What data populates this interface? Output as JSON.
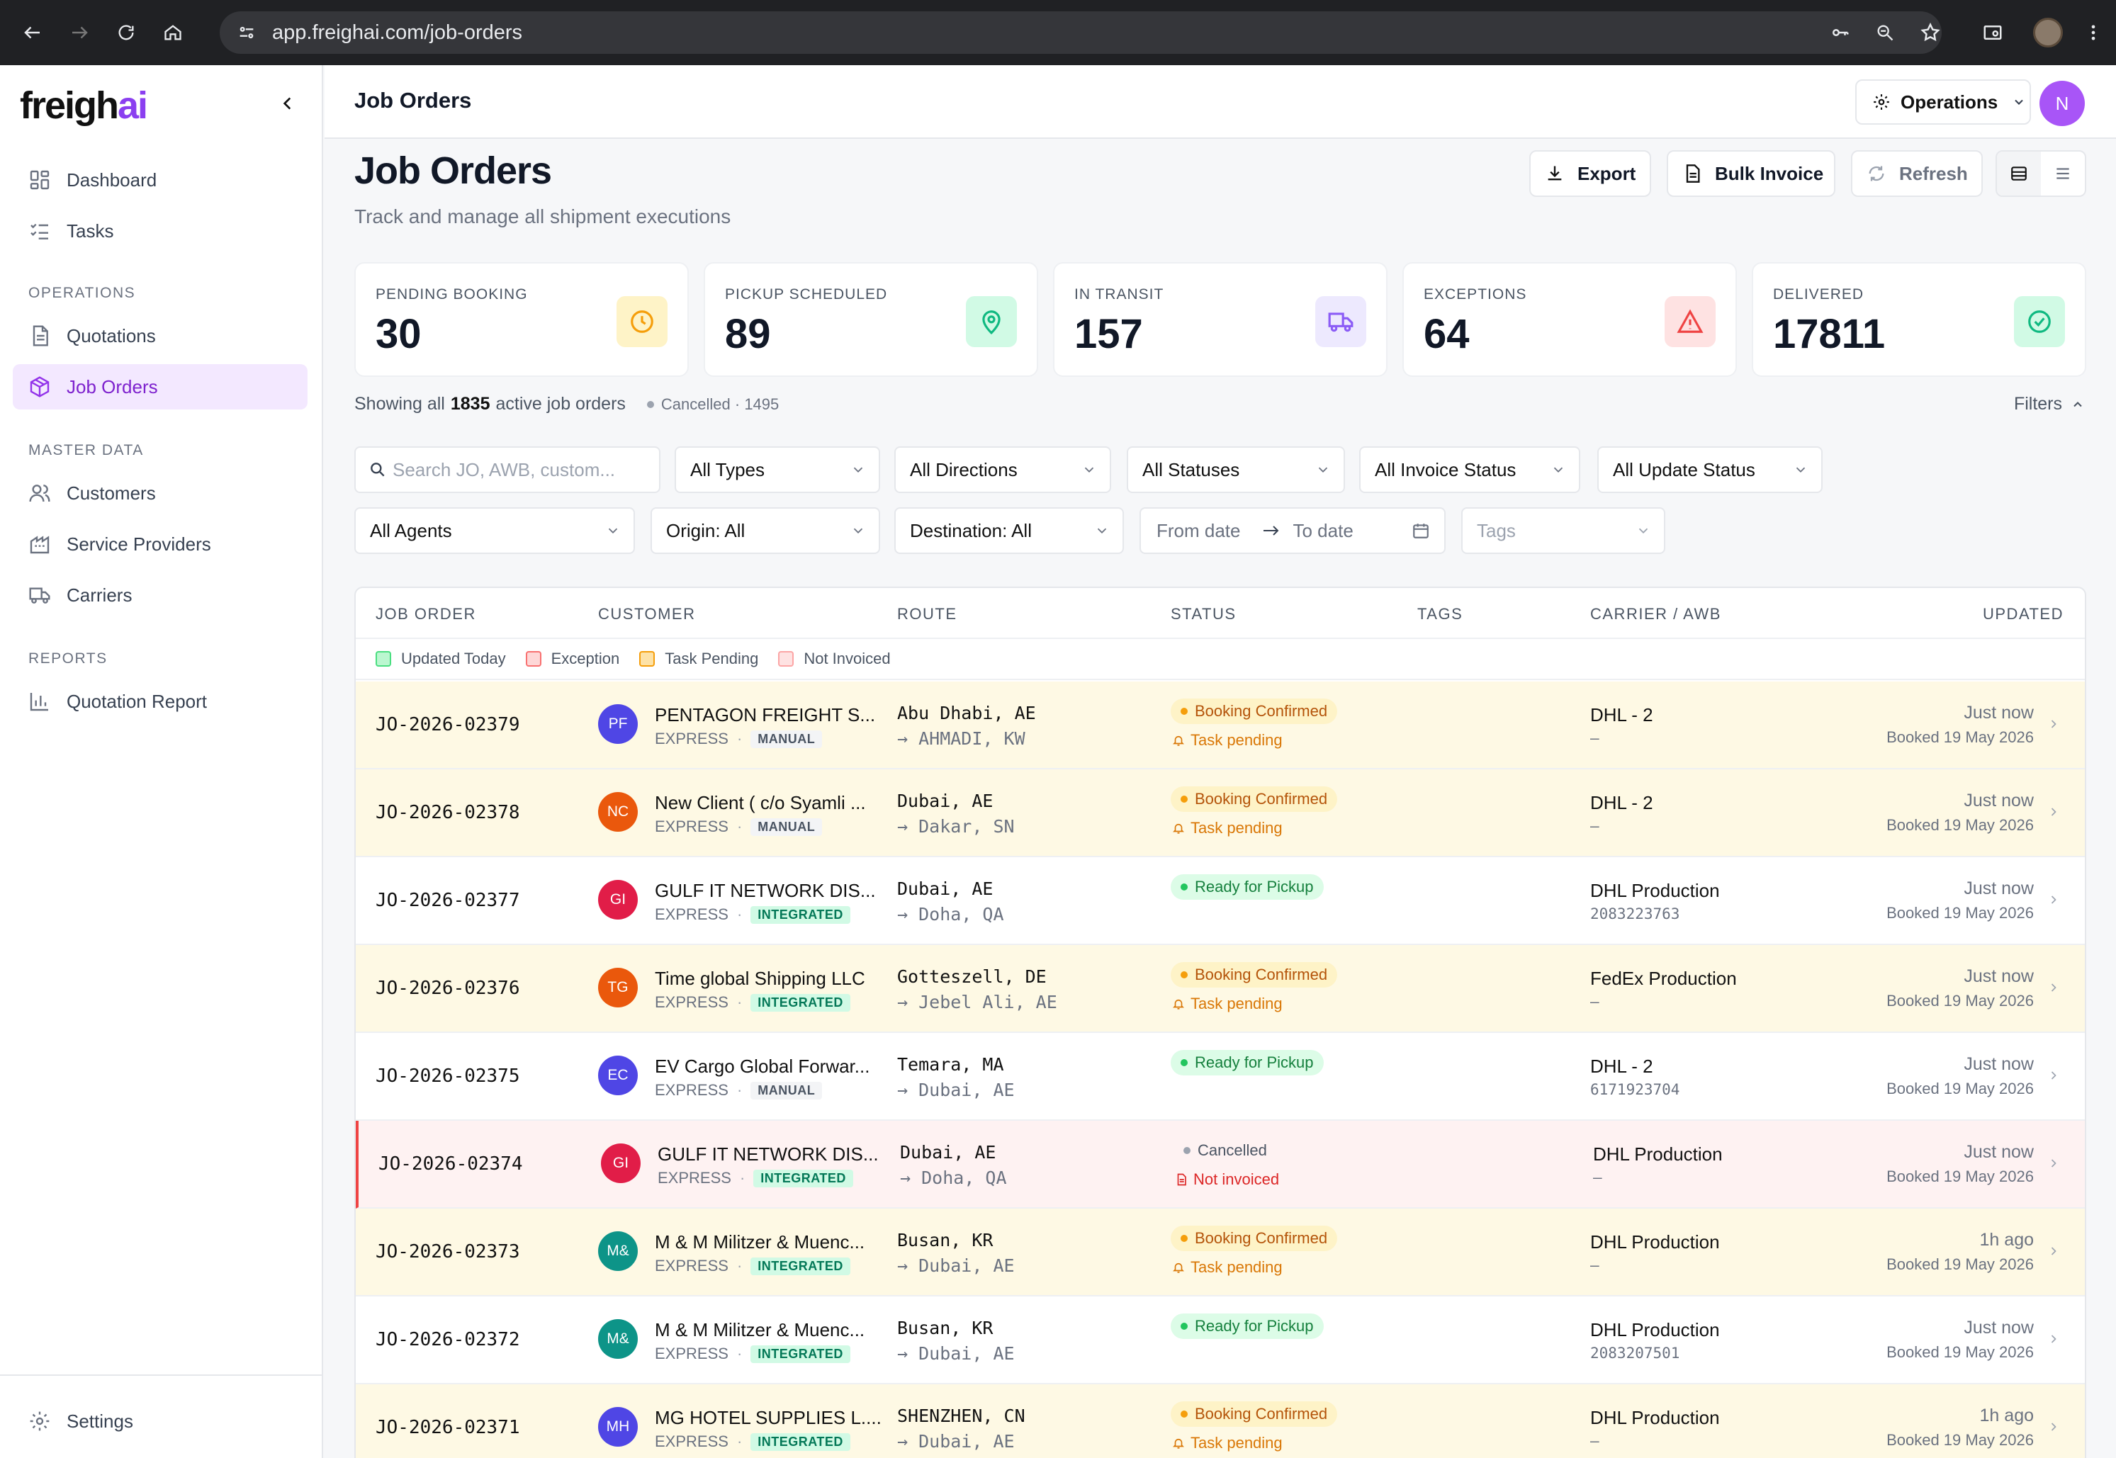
{
  "browser": {
    "url": "app.freighai.com/job-orders"
  },
  "brand": {
    "part1": "freigh",
    "part2": "ai"
  },
  "sidebar": {
    "items": [
      {
        "label": "Dashboard",
        "icon": "dashboard-icon"
      },
      {
        "label": "Tasks",
        "icon": "tasks-icon"
      }
    ],
    "section_operations": "OPERATIONS",
    "operations": [
      {
        "label": "Quotations",
        "icon": "document-icon"
      },
      {
        "label": "Job Orders",
        "icon": "package-icon",
        "active": true
      }
    ],
    "section_master": "MASTER DATA",
    "master": [
      {
        "label": "Customers",
        "icon": "users-icon"
      },
      {
        "label": "Service Providers",
        "icon": "building-icon"
      },
      {
        "label": "Carriers",
        "icon": "truck-icon"
      }
    ],
    "section_reports": "REPORTS",
    "reports": [
      {
        "label": "Quotation Report",
        "icon": "bar-chart-icon"
      }
    ],
    "settings": "Settings"
  },
  "header": {
    "title": "Job Orders",
    "workspace": "Operations",
    "avatar": "N"
  },
  "page": {
    "title": "Job Orders",
    "subtitle": "Track and manage all shipment executions",
    "export": "Export",
    "bulk_invoice": "Bulk Invoice",
    "refresh": "Refresh"
  },
  "stats": [
    {
      "label": "PENDING BOOKING",
      "value": "30",
      "color": "#f59e0b",
      "bg": "#fef3c7"
    },
    {
      "label": "PICKUP SCHEDULED",
      "value": "89",
      "color": "#10b981",
      "bg": "#d1fae5"
    },
    {
      "label": "IN TRANSIT",
      "value": "157",
      "color": "#8b5cf6",
      "bg": "#ede9fe"
    },
    {
      "label": "EXCEPTIONS",
      "value": "64",
      "color": "#ef4444",
      "bg": "#fee2e2"
    },
    {
      "label": "DELIVERED",
      "value": "17811",
      "color": "#10b981",
      "bg": "#d1fae5"
    }
  ],
  "summary": {
    "prefix": "Showing all",
    "count": "1835",
    "suffix": "active job orders",
    "cancelled": "Cancelled · 1495",
    "filters": "Filters"
  },
  "filters": {
    "search_placeholder": "Search JO, AWB, custom...",
    "types": "All Types",
    "directions": "All Directions",
    "statuses": "All Statuses",
    "invoice": "All Invoice Status",
    "update": "All Update Status",
    "agents": "All Agents",
    "origin": "Origin: All",
    "destination": "Destination: All",
    "from_date": "From date",
    "to_date": "To date",
    "tags": "Tags"
  },
  "table": {
    "headers": {
      "job": "JOB ORDER",
      "customer": "CUSTOMER",
      "route": "ROUTE",
      "status": "STATUS",
      "tags": "TAGS",
      "carrier": "CARRIER / AWB",
      "updated": "UPDATED"
    },
    "legend": [
      {
        "label": "Updated Today",
        "color": "#bbf7d0",
        "border": "#4ade80"
      },
      {
        "label": "Exception",
        "color": "#fed7d7",
        "border": "#f87171"
      },
      {
        "label": "Task Pending",
        "color": "#fde2a7",
        "border": "#f59e0b"
      },
      {
        "label": "Not Invoiced",
        "color": "#fee2e2",
        "border": "#fca5a5"
      }
    ],
    "rows": [
      {
        "jo": "JO-2026-02379",
        "initials": "PF",
        "avatar_color": "#4f46e5",
        "customer": "PENTAGON FREIGHT S...",
        "mode": "EXPRESS",
        "tag": "MANUAL",
        "from": "Abu Dhabi, AE",
        "to": "→ AHMADI, KW",
        "status": "Booking Confirmed",
        "status_kind": "bc",
        "sub": "Task pending",
        "sub_kind": "tp",
        "carrier": "DHL - 2",
        "awb": "—",
        "updated": "Just now",
        "booked": "Booked 19 May 2026",
        "tone": "yel"
      },
      {
        "jo": "JO-2026-02378",
        "initials": "NC",
        "avatar_color": "#ea580c",
        "customer": "New Client ( c/o Syamli ...",
        "mode": "EXPRESS",
        "tag": "MANUAL",
        "from": "Dubai, AE",
        "to": "→ Dakar, SN",
        "status": "Booking Confirmed",
        "status_kind": "bc",
        "sub": "Task pending",
        "sub_kind": "tp",
        "carrier": "DHL - 2",
        "awb": "—",
        "updated": "Just now",
        "booked": "Booked 19 May 2026",
        "tone": "yel"
      },
      {
        "jo": "JO-2026-02377",
        "initials": "GI",
        "avatar_color": "#e11d48",
        "customer": "GULF IT NETWORK DIS...",
        "mode": "EXPRESS",
        "tag": "INTEGRATED",
        "from": "Dubai, AE",
        "to": "→ Doha, QA",
        "status": "Ready for Pickup",
        "status_kind": "rp",
        "sub": "",
        "sub_kind": "",
        "carrier": "DHL Production",
        "awb": "2083223763",
        "updated": "Just now",
        "booked": "Booked 19 May 2026",
        "tone": ""
      },
      {
        "jo": "JO-2026-02376",
        "initials": "TG",
        "avatar_color": "#ea580c",
        "customer": "Time global Shipping LLC",
        "mode": "EXPRESS",
        "tag": "INTEGRATED",
        "from": "Gotteszell, DE",
        "to": "→ Jebel Ali, AE",
        "status": "Booking Confirmed",
        "status_kind": "bc",
        "sub": "Task pending",
        "sub_kind": "tp",
        "carrier": "FedEx Production",
        "awb": "—",
        "updated": "Just now",
        "booked": "Booked 19 May 2026",
        "tone": "yel"
      },
      {
        "jo": "JO-2026-02375",
        "initials": "EC",
        "avatar_color": "#4f46e5",
        "customer": "EV Cargo Global Forwar...",
        "mode": "EXPRESS",
        "tag": "MANUAL",
        "from": "Temara, MA",
        "to": "→ Dubai, AE",
        "status": "Ready for Pickup",
        "status_kind": "rp",
        "sub": "",
        "sub_kind": "",
        "carrier": "DHL - 2",
        "awb": "6171923704",
        "updated": "Just now",
        "booked": "Booked 19 May 2026",
        "tone": ""
      },
      {
        "jo": "JO-2026-02374",
        "initials": "GI",
        "avatar_color": "#e11d48",
        "customer": "GULF IT NETWORK DIS...",
        "mode": "EXPRESS",
        "tag": "INTEGRATED",
        "from": "Dubai, AE",
        "to": "→ Doha, QA",
        "status": "Cancelled",
        "status_kind": "cn",
        "sub": "Not invoiced",
        "sub_kind": "ni",
        "carrier": "DHL Production",
        "awb": "—",
        "updated": "Just now",
        "booked": "Booked 19 May 2026",
        "tone": "red"
      },
      {
        "jo": "JO-2026-02373",
        "initials": "M&",
        "avatar_color": "#0d9488",
        "customer": "M & M Militzer & Muenc...",
        "mode": "EXPRESS",
        "tag": "INTEGRATED",
        "from": "Busan, KR",
        "to": "→ Dubai, AE",
        "status": "Booking Confirmed",
        "status_kind": "bc",
        "sub": "Task pending",
        "sub_kind": "tp",
        "carrier": "DHL Production",
        "awb": "—",
        "updated": "1h ago",
        "booked": "Booked 19 May 2026",
        "tone": "yel"
      },
      {
        "jo": "JO-2026-02372",
        "initials": "M&",
        "avatar_color": "#0d9488",
        "customer": "M & M Militzer & Muenc...",
        "mode": "EXPRESS",
        "tag": "INTEGRATED",
        "from": "Busan, KR",
        "to": "→ Dubai, AE",
        "status": "Ready for Pickup",
        "status_kind": "rp",
        "sub": "",
        "sub_kind": "",
        "carrier": "DHL Production",
        "awb": "2083207501",
        "updated": "Just now",
        "booked": "Booked 19 May 2026",
        "tone": ""
      },
      {
        "jo": "JO-2026-02371",
        "initials": "MH",
        "avatar_color": "#4f46e5",
        "customer": "MG HOTEL SUPPLIES L....",
        "mode": "EXPRESS",
        "tag": "INTEGRATED",
        "from": "SHENZHEN, CN",
        "to": "→ Dubai, AE",
        "status": "Booking Confirmed",
        "status_kind": "bc",
        "sub": "Task pending",
        "sub_kind": "tp",
        "carrier": "DHL Production",
        "awb": "—",
        "updated": "1h ago",
        "booked": "Booked 19 May 2026",
        "tone": "yel"
      }
    ]
  }
}
